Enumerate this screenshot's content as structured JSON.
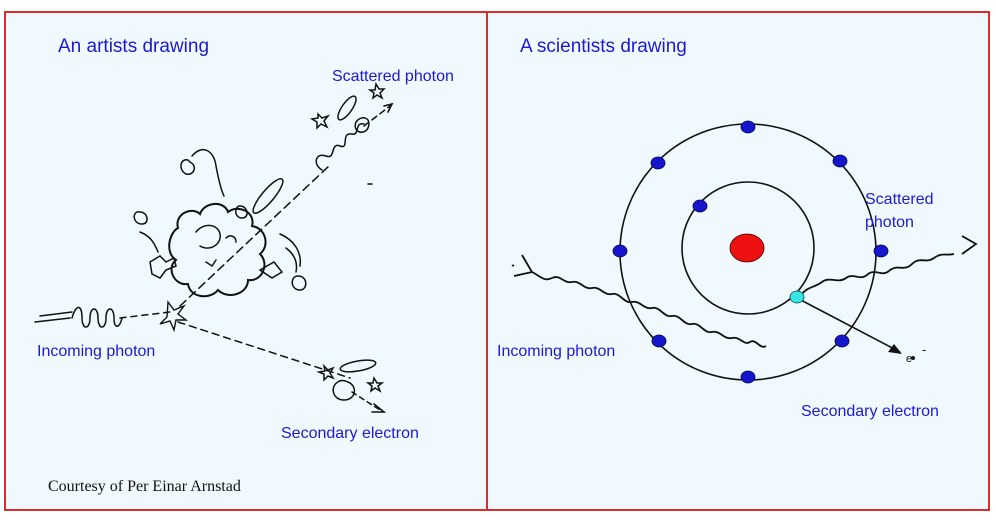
{
  "left": {
    "title": "An artists drawing",
    "scattered_label": "Scattered photon",
    "incoming_label": "Incoming photon",
    "electron_label": "Secondary electron",
    "credit": "Courtesy of Per Einar Arnstad"
  },
  "right": {
    "title": "A scientists drawing",
    "scattered_label_line1": "Scattered",
    "scattered_label_line2": "photon",
    "incoming_label": "Incoming photon",
    "electron_label": "Secondary electron",
    "electron_symbol": "e",
    "electron_charge": "-"
  },
  "colors": {
    "border": "#e02b2b",
    "panel_bg": "#f0f9fd",
    "label_blue": "#1a1ad6",
    "orbit_electron": "#1515cc",
    "nucleus": "#ee1111",
    "hit_electron": "#39e6e6"
  }
}
